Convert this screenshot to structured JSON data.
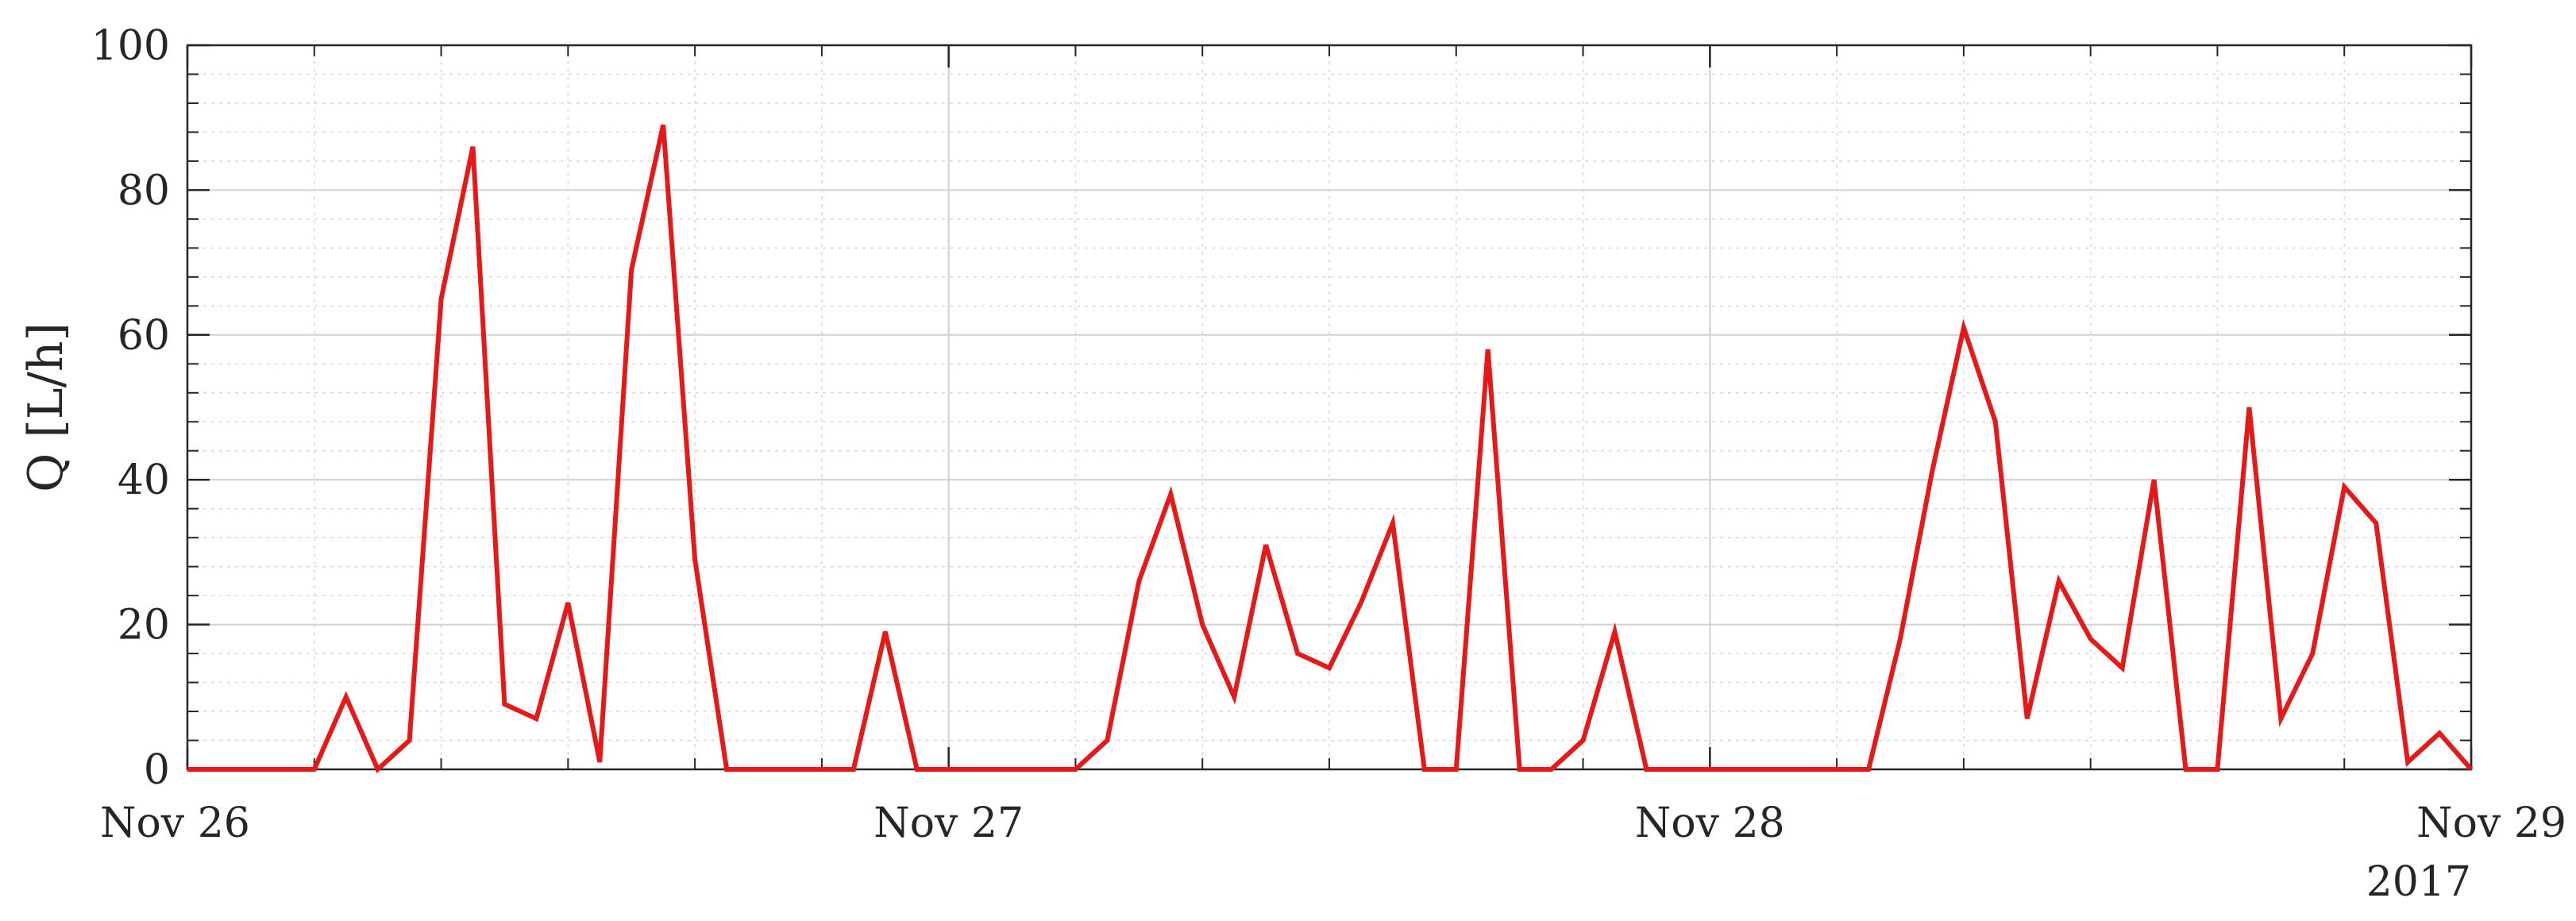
{
  "chart_data": {
    "type": "line",
    "ylabel": "Q [L/h]",
    "xlabel": "",
    "title": "",
    "xlim": [
      "Nov 26",
      "Nov 29"
    ],
    "ylim": [
      0,
      100
    ],
    "x_ticks": [
      "Nov 26",
      "Nov 27",
      "Nov 28",
      "Nov 29"
    ],
    "x_year_label": "2017",
    "y_ticks": [
      0,
      20,
      40,
      60,
      80,
      100
    ],
    "grid": true,
    "minor_grid": true,
    "x_step_hours": 1,
    "series": [
      {
        "color": "#e61919",
        "values": [
          0,
          0,
          0,
          0,
          0,
          10,
          0,
          4,
          65,
          86,
          9,
          7,
          23,
          1,
          69,
          89,
          29,
          0,
          0,
          0,
          0,
          0,
          19,
          0,
          0,
          0,
          0,
          0,
          0,
          4,
          26,
          38,
          20,
          10,
          31,
          16,
          14,
          23,
          34,
          0,
          0,
          58,
          0,
          0,
          4,
          19,
          0,
          0,
          0,
          0,
          0,
          0,
          0,
          0,
          18,
          41,
          61,
          48,
          7,
          26,
          18,
          14,
          40,
          0,
          0,
          50,
          7,
          16,
          39,
          34,
          1,
          5,
          0
        ]
      }
    ]
  }
}
